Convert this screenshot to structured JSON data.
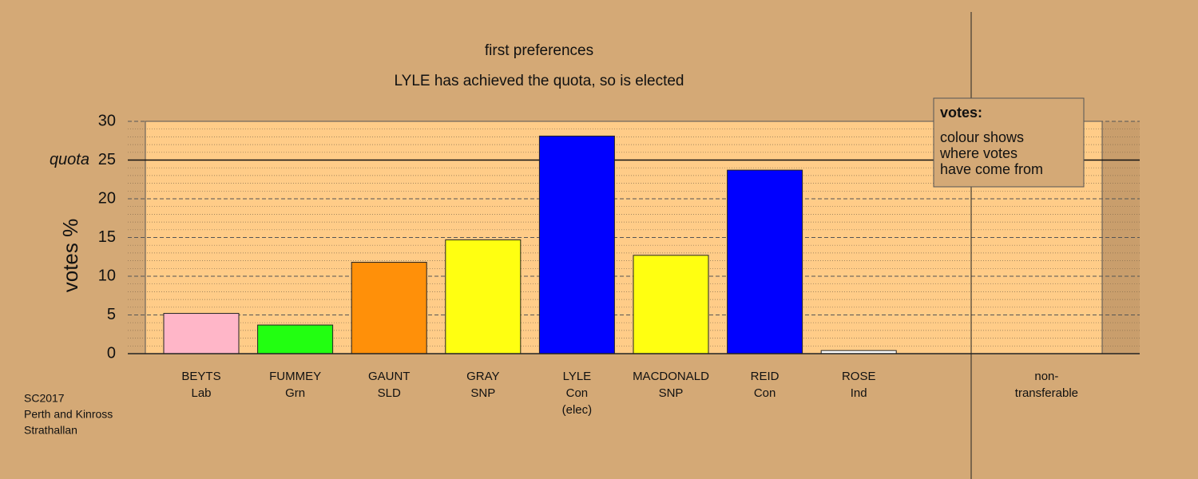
{
  "chart_data": {
    "type": "bar",
    "title": "first preferences",
    "subtitle": "LYLE has achieved the quota, so is elected",
    "ylabel": "votes %",
    "categories": [
      [
        "BEYTS",
        "Lab"
      ],
      [
        "FUMMEY",
        "Grn"
      ],
      [
        "GAUNT",
        "SLD"
      ],
      [
        "GRAY",
        "SNP"
      ],
      [
        "LYLE",
        "Con",
        "(elec)"
      ],
      [
        "MACDONALD",
        "SNP"
      ],
      [
        "REID",
        "Con"
      ],
      [
        "ROSE",
        "Ind"
      ],
      null,
      [
        "non-",
        "transferable"
      ]
    ],
    "values": [
      5.2,
      3.7,
      11.8,
      14.7,
      28.1,
      12.7,
      23.7,
      0.4,
      null,
      0
    ],
    "colors": [
      "#ffb6c8",
      "#22ff11",
      "#ff9009",
      "#ffff11",
      "#0000ff",
      "#ffff11",
      "#0000ff",
      "#ffffff",
      null,
      "#ffffff"
    ],
    "ylim": [
      0,
      30
    ],
    "yticks": [
      0,
      5,
      10,
      15,
      20,
      25,
      30
    ],
    "yminorticks": [
      1,
      2,
      3,
      4,
      6,
      7,
      8,
      9,
      11,
      12,
      13,
      14,
      16,
      17,
      18,
      19,
      21,
      22,
      23,
      24,
      26,
      27,
      28,
      29
    ],
    "quota": {
      "value": 25,
      "label": "quota"
    },
    "grid": true,
    "legend": {
      "title": "votes:",
      "lines": [
        "colour shows",
        "where votes",
        "have come from"
      ]
    },
    "footer": [
      "SC2017",
      "Perth and Kinross",
      "Strathallan"
    ]
  }
}
